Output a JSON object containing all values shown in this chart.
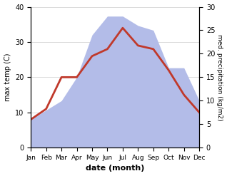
{
  "months": [
    "Jan",
    "Feb",
    "Mar",
    "Apr",
    "May",
    "Jun",
    "Jul",
    "Aug",
    "Sep",
    "Oct",
    "Nov",
    "Dec"
  ],
  "temp": [
    8,
    11,
    20,
    20,
    26,
    28,
    34,
    29,
    28,
    22,
    15,
    10
  ],
  "precip_right": [
    6,
    8,
    10,
    15,
    24,
    28,
    28,
    26,
    25,
    17,
    17,
    10
  ],
  "temp_color": "#c0392b",
  "precip_color_fill": "#b3bce8",
  "ylabel_left": "max temp (C)",
  "ylabel_right": "med. precipitation (kg/m2)",
  "xlabel": "date (month)",
  "ylim_left": [
    0,
    40
  ],
  "ylim_right": [
    0,
    30
  ],
  "yticks_left": [
    0,
    10,
    20,
    30,
    40
  ],
  "yticks_right": [
    0,
    5,
    10,
    15,
    20,
    25,
    30
  ],
  "bg_color": "#ffffff",
  "temp_linewidth": 2.0
}
